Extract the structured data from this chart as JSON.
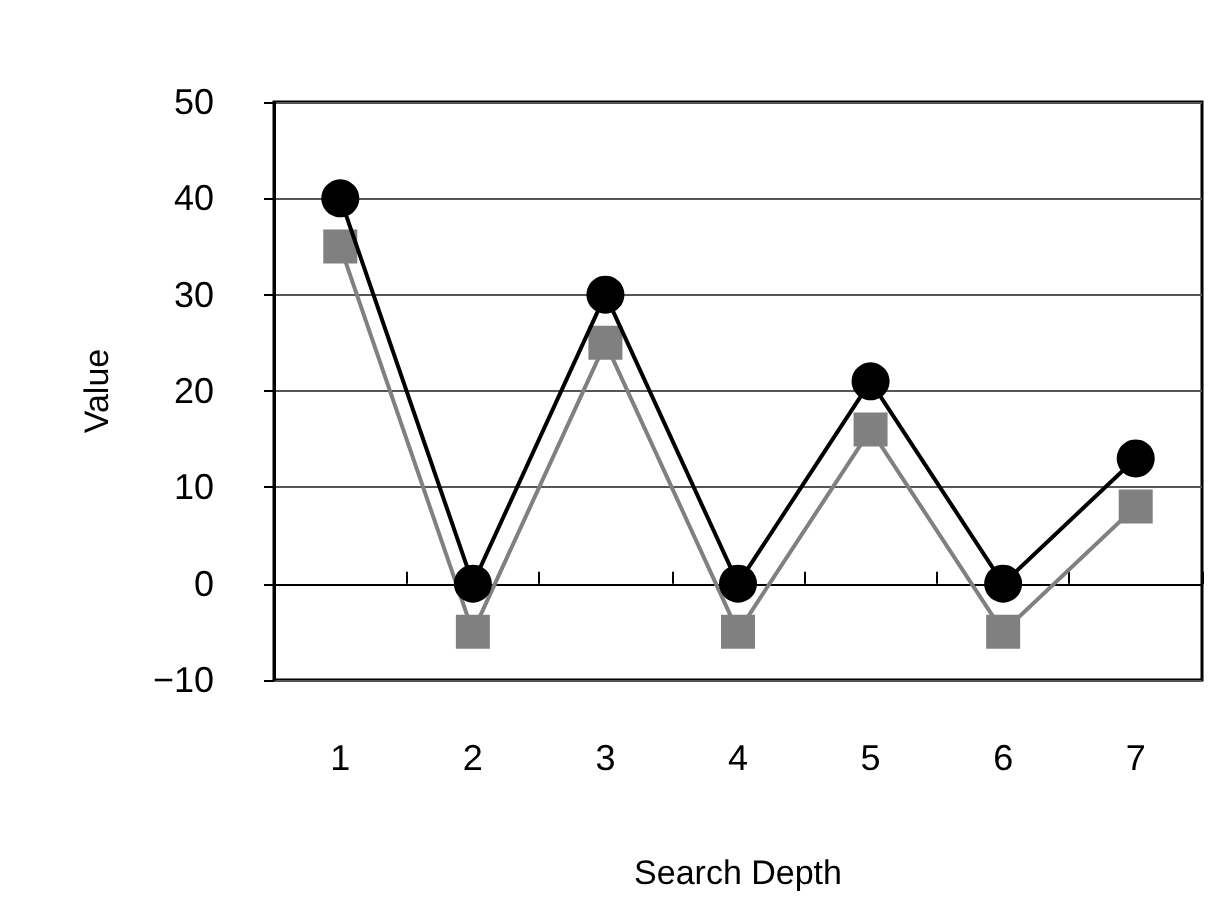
{
  "chart_data": {
    "type": "line",
    "xlabel": "Search Depth",
    "ylabel": "Value",
    "categories": [
      "1",
      "2",
      "3",
      "4",
      "5",
      "6",
      "7"
    ],
    "series": [
      {
        "color": "#000000",
        "marker": "circle",
        "values": [
          40,
          0,
          30,
          0,
          21,
          0,
          13
        ]
      },
      {
        "color": "#808080",
        "marker": "square",
        "values": [
          35,
          -5,
          25,
          -5,
          16,
          -5,
          8
        ]
      }
    ],
    "ylim": [
      -10,
      50
    ],
    "yticks": [
      -10,
      0,
      10,
      20,
      30,
      40,
      50
    ],
    "grid": "y"
  }
}
